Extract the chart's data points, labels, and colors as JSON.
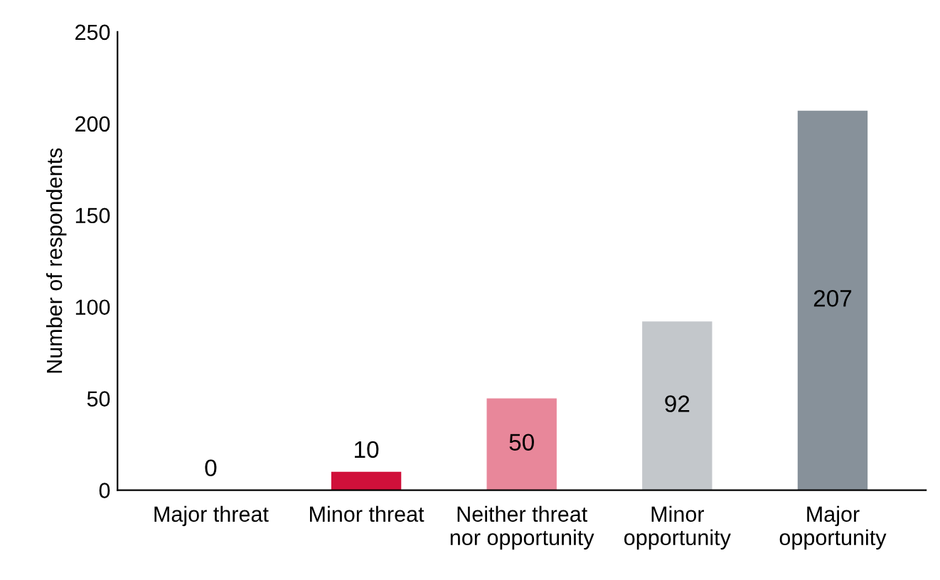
{
  "chart_data": {
    "type": "bar",
    "ylabel": "Number of respondents",
    "categories": [
      "Major threat",
      "Minor threat",
      "Neither threat\nnor opportunity",
      "Minor\nopportunity",
      "Major\nopportunity"
    ],
    "values": [
      0,
      10,
      50,
      92,
      207
    ],
    "colors": [
      "#a0102e",
      "#d0103a",
      "#e8879a",
      "#c3c7cb",
      "#87919a"
    ],
    "ylim": [
      0,
      250
    ],
    "yticks": [
      0,
      50,
      100,
      150,
      200,
      250
    ],
    "grid": false,
    "data_labels": true
  }
}
